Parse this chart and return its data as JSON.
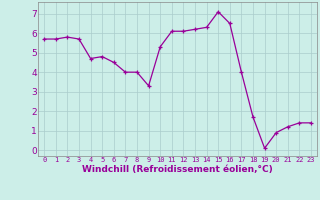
{
  "x": [
    0,
    1,
    2,
    3,
    4,
    5,
    6,
    7,
    8,
    9,
    10,
    11,
    12,
    13,
    14,
    15,
    16,
    17,
    18,
    19,
    20,
    21,
    22,
    23
  ],
  "y": [
    5.7,
    5.7,
    5.8,
    5.7,
    4.7,
    4.8,
    4.5,
    4.0,
    4.0,
    3.3,
    5.3,
    6.1,
    6.1,
    6.2,
    6.3,
    7.1,
    6.5,
    4.0,
    1.7,
    0.1,
    0.9,
    1.2,
    1.4,
    1.4
  ],
  "line_color": "#990099",
  "marker": "+",
  "bg_color": "#cceee8",
  "grid_color": "#aacccc",
  "xlabel": "Windchill (Refroidissement éolien,°C)",
  "xlabel_color": "#990099",
  "ylabel_ticks": [
    0,
    1,
    2,
    3,
    4,
    5,
    6,
    7
  ],
  "xlim": [
    -0.5,
    23.5
  ],
  "ylim": [
    -0.3,
    7.6
  ],
  "tick_color": "#990099",
  "x_tick_fontsize": 5.0,
  "y_tick_fontsize": 6.5,
  "xlabel_fontsize": 6.5
}
